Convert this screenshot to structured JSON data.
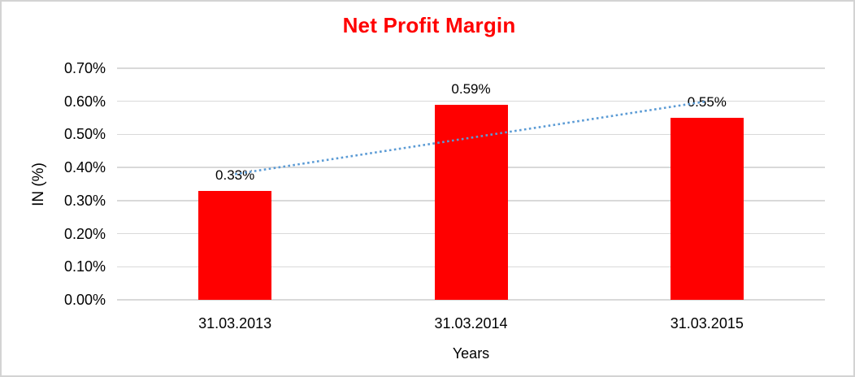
{
  "window": {
    "background_color": "#FFFFFF",
    "frame_border_color": "#D3D3D3"
  },
  "chart_data": {
    "type": "bar",
    "title": "Net Profit Margin",
    "title_color": "#FF0000",
    "categories": [
      "31.03.2013",
      "31.03.2014",
      "31.03.2015"
    ],
    "values": [
      0.33,
      0.59,
      0.55
    ],
    "value_labels": [
      "0.33%",
      "0.59%",
      "0.55%"
    ],
    "bar_color": "#FF0000",
    "xlabel": "Years",
    "ylabel": "IN (%)",
    "ylim": [
      0,
      0.7
    ],
    "ytick_step": 0.1,
    "ytick_labels": [
      "0.00%",
      "0.10%",
      "0.20%",
      "0.30%",
      "0.40%",
      "0.50%",
      "0.60%",
      "0.70%"
    ],
    "grid": true,
    "gridline_color": "#D9D9D9",
    "legend": "none",
    "trendline": {
      "type": "linear",
      "style": "dotted",
      "color": "#5B9BD5",
      "start_value": 0.38,
      "end_value": 0.6
    }
  }
}
